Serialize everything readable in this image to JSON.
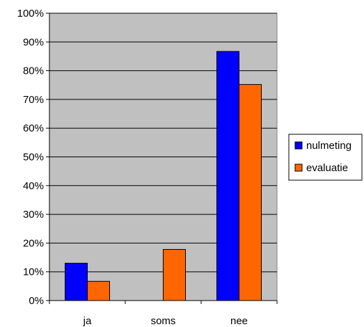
{
  "chart_data": {
    "type": "bar",
    "categories": [
      "ja",
      "soms",
      "nee"
    ],
    "series": [
      {
        "name": "nulmeting",
        "values": [
          13,
          0,
          86.7
        ],
        "color": "#0000FF"
      },
      {
        "name": "evaluatie",
        "values": [
          6.7,
          17.8,
          75.2
        ],
        "color": "#FF6600"
      }
    ],
    "ylim": [
      0,
      100
    ],
    "yticks": [
      "0%",
      "10%",
      "20%",
      "30%",
      "40%",
      "50%",
      "60%",
      "70%",
      "80%",
      "90%",
      "100%"
    ],
    "grid": true,
    "legend": "right",
    "plot_background": "#C0C0C0"
  }
}
